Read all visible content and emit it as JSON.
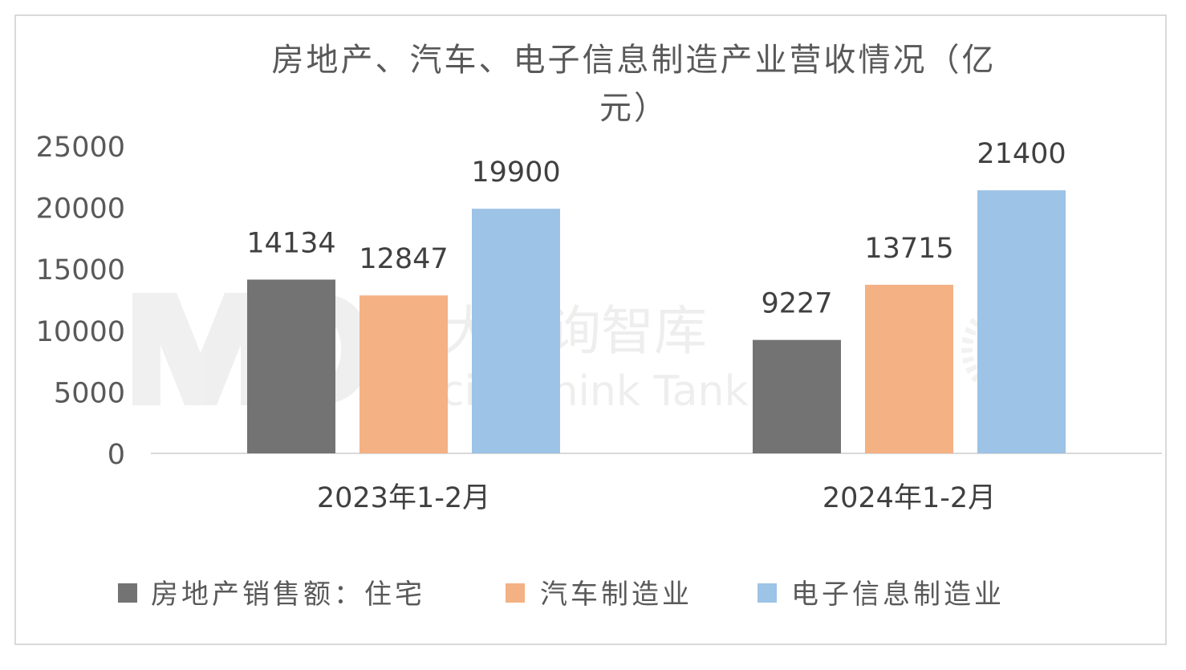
{
  "chart_data": {
    "type": "bar",
    "title_line1": "房地产、汽车、电子信息制造产业营收情况（亿",
    "title_line2": "元）",
    "categories": [
      "2023年1-2月",
      "2024年1-2月"
    ],
    "series": [
      {
        "name": "房地产销售额：住宅",
        "values": [
          14134,
          9227
        ],
        "color": "#737373"
      },
      {
        "name": "汽车制造业",
        "values": [
          12847,
          13715
        ],
        "color": "#f4b183"
      },
      {
        "name": "电子信息制造业",
        "values": [
          19900,
          21400
        ],
        "color": "#9dc3e6"
      }
    ],
    "ylim": [
      0,
      25000
    ],
    "yticks": [
      "0",
      "5000",
      "10000",
      "15000",
      "20000",
      "25000"
    ],
    "grid": false,
    "legend_position": "bottom"
  },
  "watermark": {
    "cn": "中大咨询智库",
    "en": "Social Think Tank"
  }
}
